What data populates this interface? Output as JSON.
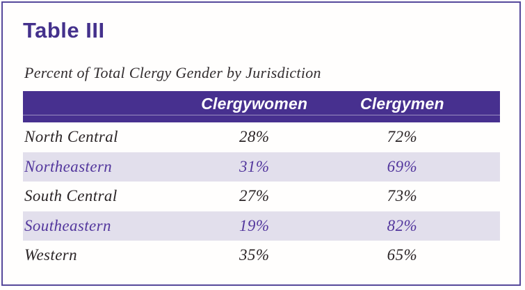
{
  "page": {
    "title": "Table III",
    "subtitle": "Percent of Total Clergy Gender by Jurisdiction"
  },
  "table": {
    "columns": {
      "jurisdiction": "",
      "clergywomen": "Clergywomen",
      "clergymen": "Clergymen"
    },
    "rows": [
      {
        "jurisdiction": "North Central",
        "clergywomen": "28%",
        "clergymen": "72%"
      },
      {
        "jurisdiction": "Northeastern",
        "clergywomen": "31%",
        "clergymen": "69%"
      },
      {
        "jurisdiction": "South Central",
        "clergywomen": "27%",
        "clergymen": "73%"
      },
      {
        "jurisdiction": "Southeastern",
        "clergywomen": "19%",
        "clergymen": "82%"
      },
      {
        "jurisdiction": "Western",
        "clergywomen": "35%",
        "clergymen": "65%"
      }
    ]
  },
  "colors": {
    "header_bar_purple": "#47308f",
    "frame_border_purple": "#55489b",
    "title_purple": "#44318c",
    "highlight_row_lavender": "#e2dfec",
    "highlight_text_purple": "#53379d",
    "body_text_dark": "#2b2527",
    "header_text_white": "#ffffff"
  },
  "chart_data": {
    "type": "table",
    "title": "Table III",
    "subtitle": "Percent of Total Clergy Gender by Jurisdiction",
    "categories": [
      "North Central",
      "Northeastern",
      "South Central",
      "Southeastern",
      "Western"
    ],
    "series": [
      {
        "name": "Clergywomen",
        "values": [
          28,
          31,
          27,
          19,
          35
        ]
      },
      {
        "name": "Clergymen",
        "values": [
          72,
          69,
          73,
          82,
          65
        ]
      }
    ],
    "value_unit": "%",
    "highlighted_rows": [
      "Northeastern",
      "Southeastern"
    ],
    "legend_position": "none",
    "grid": false
  }
}
